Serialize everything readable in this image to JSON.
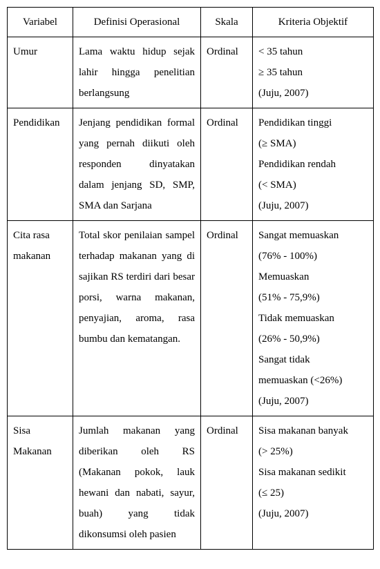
{
  "headers": {
    "variabel": "Variabel",
    "definisi": "Definisi Operasional",
    "skala": "Skala",
    "kriteria": "Kriteria Objektif"
  },
  "rows": {
    "r1": {
      "variabel": "Umur",
      "definisi": "Lama waktu hidup sejak lahir hingga penelitian berlangsung",
      "skala": "Ordinal",
      "kriteria_l1": "< 35 tahun",
      "kriteria_l2": "≥ 35 tahun",
      "kriteria_l3": "(Juju, 2007)"
    },
    "r2": {
      "variabel": "Pendidikan",
      "definisi": "Jenjang pendidikan formal yang pernah diikuti oleh responden dinyatakan dalam jenjang SD, SMP, SMA dan Sarjana",
      "skala": "Ordinal",
      "kriteria_l1": "Pendidikan tinggi",
      "kriteria_l2": "(≥ SMA)",
      "kriteria_l3": "Pendidikan rendah",
      "kriteria_l4": " (< SMA)",
      "kriteria_l5": "(Juju, 2007)"
    },
    "r3": {
      "variabel_l1": "Cita rasa",
      "variabel_l2": "makanan",
      "definisi": "Total skor penilaian sampel terhadap makanan yang di sajikan RS terdiri dari besar porsi, warna makanan, penyajian, aroma, rasa bumbu dan kematangan.",
      "skala": "Ordinal",
      "kriteria_l1": "Sangat memuaskan",
      "kriteria_l2": "(76% - 100%)",
      "kriteria_l3": "Memuaskan",
      "kriteria_l4": " (51% - 75,9%)",
      "kriteria_l5": "Tidak memuaskan",
      "kriteria_l6": "(26% - 50,9%)",
      "kriteria_l7": "Sangat tidak",
      "kriteria_l8": "memuaskan (<26%)",
      "kriteria_l9": "(Juju, 2007)"
    },
    "r4": {
      "variabel_l1": "Sisa",
      "variabel_l2": "Makanan",
      "definisi": "Jumlah makanan yang diberikan oleh RS (Makanan pokok, lauk hewani dan nabati, sayur, buah) yang tidak dikonsumsi oleh pasien",
      "skala": "Ordinal",
      "kriteria_l1": "Sisa makanan banyak",
      "kriteria_l2": "(> 25%)",
      "kriteria_l3": "Sisa makanan sedikit",
      "kriteria_l4": "(≤ 25)",
      "kriteria_l5": "(Juju, 2007)"
    }
  }
}
